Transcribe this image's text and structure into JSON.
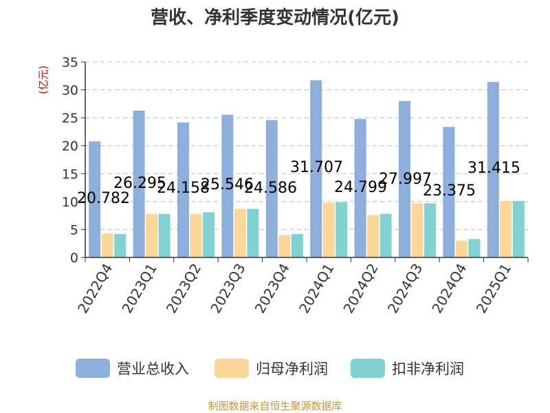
{
  "chart_data": {
    "type": "bar",
    "title": "营收、净利季度变动情况(亿元)",
    "ylabel": "(亿元)",
    "xlabel": "",
    "ylim": [
      0,
      35
    ],
    "yticks": [
      0,
      5,
      10,
      15,
      20,
      25,
      30,
      35
    ],
    "grid": true,
    "legend_position": "bottom",
    "categories": [
      "2022Q4",
      "2023Q1",
      "2023Q2",
      "2023Q3",
      "2023Q4",
      "2024Q1",
      "2024Q2",
      "2024Q3",
      "2024Q4",
      "2025Q1"
    ],
    "series": [
      {
        "name": "营业总收入",
        "color": "#8eaedb",
        "values": [
          20.782,
          26.295,
          24.158,
          25.546,
          24.586,
          31.707,
          24.799,
          27.997,
          23.375,
          31.415
        ],
        "data_labels": [
          "20.782",
          "26.295",
          "24.158",
          "25.546",
          "24.586",
          "31.707",
          "24.799",
          "27.997",
          "23.375",
          "31.415"
        ]
      },
      {
        "name": "归母净利润",
        "color": "#fdd699",
        "values": [
          4.3,
          7.8,
          7.8,
          8.7,
          4.0,
          9.8,
          7.6,
          9.7,
          3.0,
          10.1
        ]
      },
      {
        "name": "扣非净利润",
        "color": "#82d2d4",
        "values": [
          4.2,
          7.8,
          8.1,
          8.7,
          4.2,
          9.9,
          7.8,
          9.7,
          3.3,
          10.1
        ]
      }
    ],
    "source": "制图数据来自恒生聚源数据库"
  }
}
